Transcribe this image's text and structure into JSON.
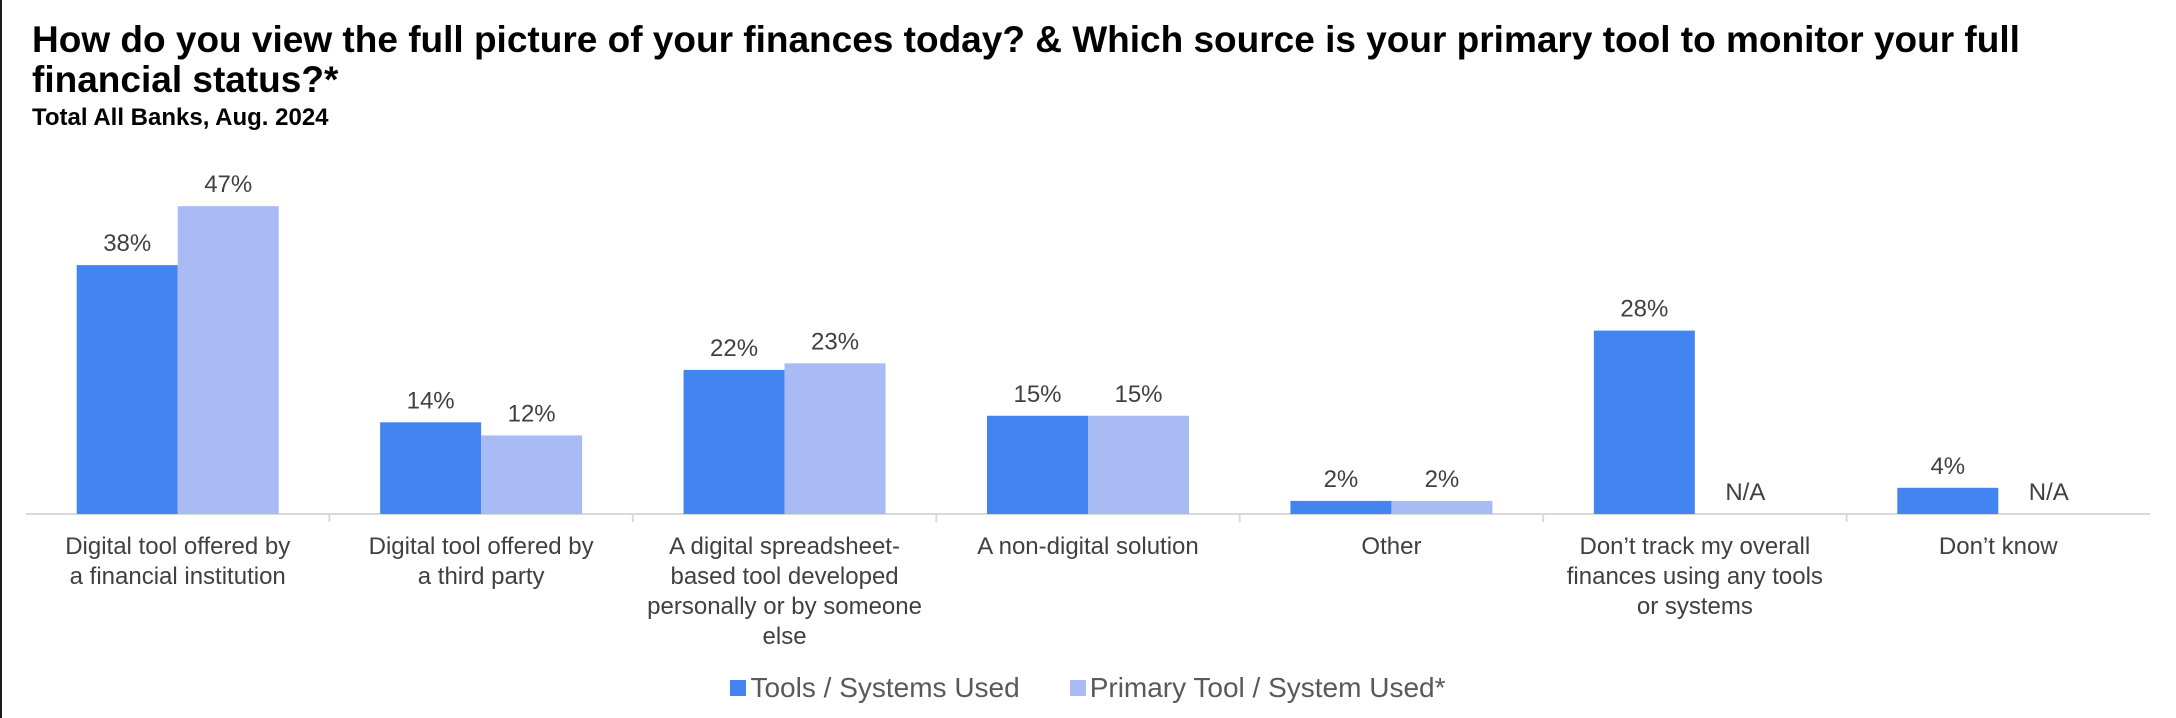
{
  "chart_data": {
    "type": "bar",
    "title": "How do you view the full picture of your finances today? & Which source is your primary tool to monitor your full financial status?*",
    "subtitle": "Total All Banks, Aug. 2024",
    "categories": [
      "Digital tool offered by a financial institution",
      "Digital tool offered by a third party",
      "A digital spreadsheet-based tool developed personally or by someone else",
      "A non-digital solution",
      "Other",
      "Don’t track my overall finances using any tools or systems",
      "Don’t know"
    ],
    "category_lines": [
      [
        "Digital tool offered by",
        "a financial institution"
      ],
      [
        "Digital tool offered by",
        "a third party"
      ],
      [
        "A digital spreadsheet-",
        "based tool developed",
        "personally or by someone",
        "else"
      ],
      [
        "A non-digital solution"
      ],
      [
        "Other"
      ],
      [
        "Don’t track my overall",
        "finances using any tools",
        "or systems"
      ],
      [
        "Don’t know"
      ]
    ],
    "series": [
      {
        "name": "Tools / Systems Used",
        "color": "#4285F0",
        "values": [
          38,
          14,
          22,
          15,
          2,
          28,
          4
        ],
        "labels": [
          "38%",
          "14%",
          "22%",
          "15%",
          "2%",
          "28%",
          "4%"
        ]
      },
      {
        "name": "Primary Tool / System Used*",
        "color": "#A8BBF5",
        "values": [
          47,
          12,
          23,
          15,
          2,
          null,
          null
        ],
        "labels": [
          "47%",
          "12%",
          "23%",
          "15%",
          "2%",
          "N/A",
          "N/A"
        ]
      }
    ],
    "ylim": [
      0,
      50
    ],
    "grid": false,
    "legend_position": "bottom"
  }
}
